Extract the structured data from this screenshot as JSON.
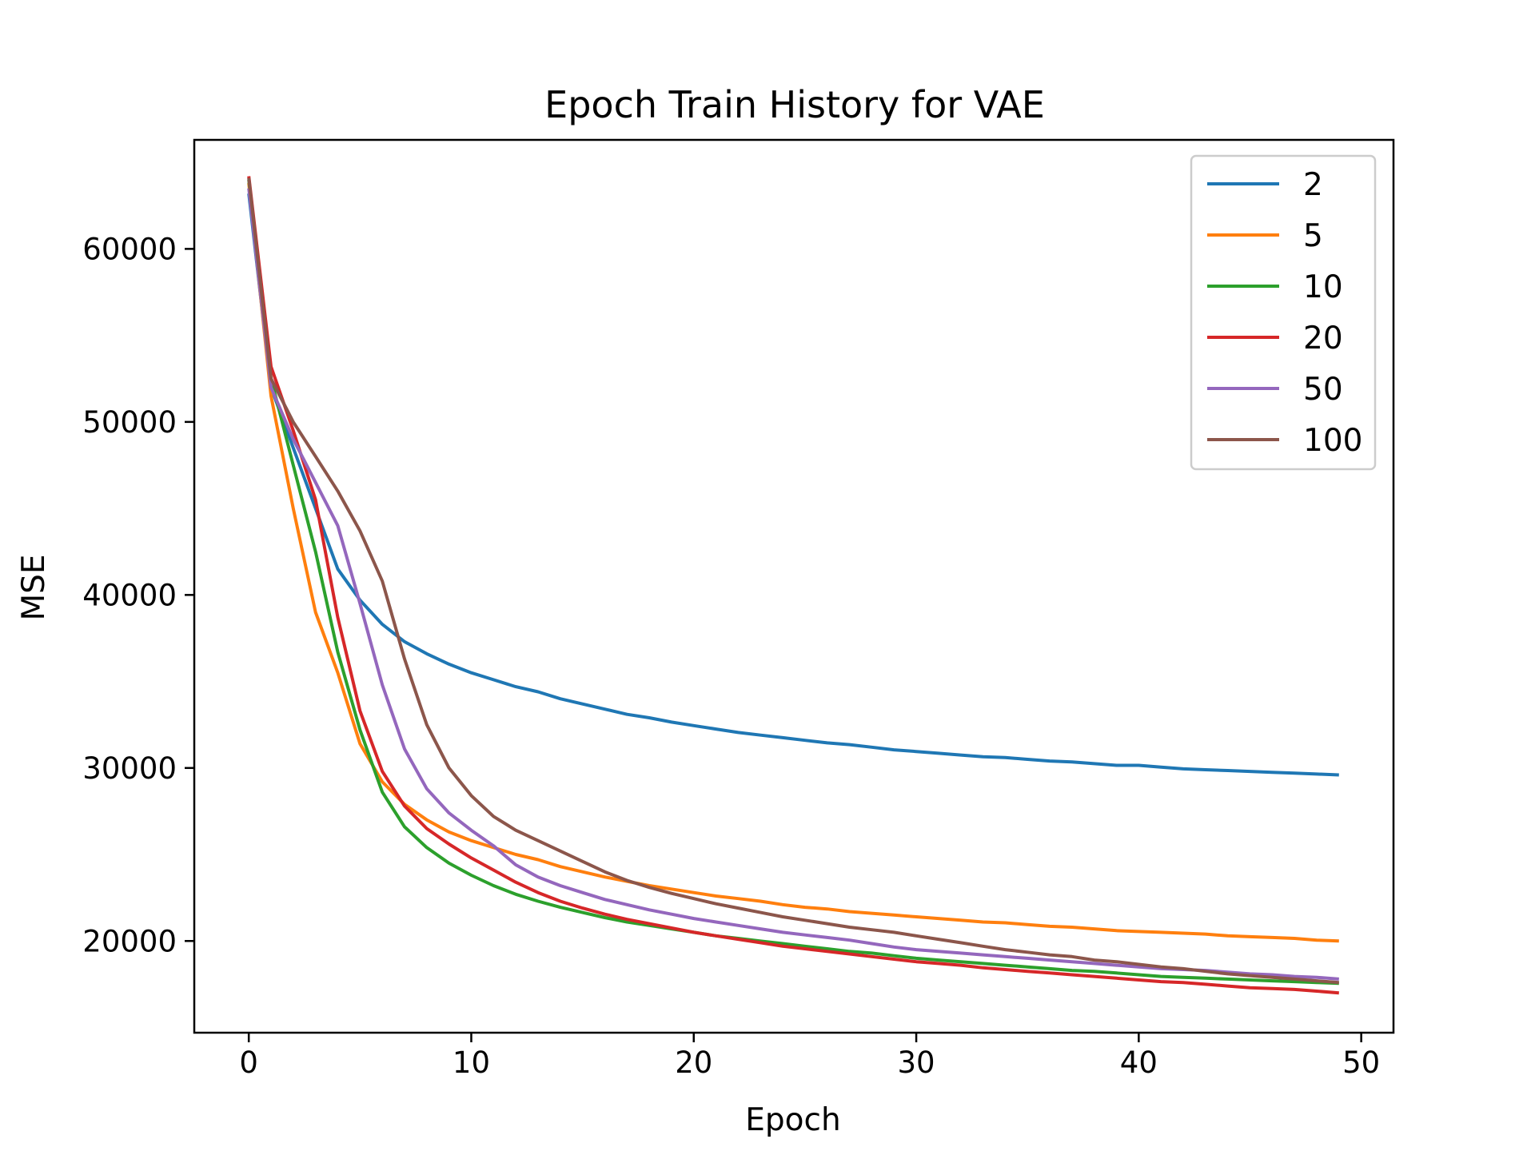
{
  "chart_data": {
    "type": "line",
    "title": "Epoch Train History for VAE",
    "xlabel": "Epoch",
    "ylabel": "MSE",
    "xlim": [
      -2.45,
      51.45
    ],
    "ylim": [
      14700,
      66300
    ],
    "xticks": [
      0,
      10,
      20,
      30,
      40,
      50
    ],
    "yticks": [
      20000,
      30000,
      40000,
      50000,
      60000
    ],
    "grid": false,
    "legend_position": "top-right",
    "x": [
      0,
      1,
      2,
      3,
      4,
      5,
      6,
      7,
      8,
      9,
      10,
      11,
      12,
      13,
      14,
      15,
      16,
      17,
      18,
      19,
      20,
      21,
      22,
      23,
      24,
      25,
      26,
      27,
      28,
      29,
      30,
      31,
      32,
      33,
      34,
      35,
      36,
      37,
      38,
      39,
      40,
      41,
      42,
      43,
      44,
      45,
      46,
      47,
      48,
      49
    ],
    "series": [
      {
        "name": "2",
        "color": "#1f77b4",
        "values": [
          63200,
          52000,
          48500,
          45000,
          41500,
          39700,
          38300,
          37300,
          36600,
          36000,
          35500,
          35100,
          34700,
          34400,
          34000,
          33700,
          33400,
          33100,
          32900,
          32650,
          32450,
          32250,
          32050,
          31900,
          31750,
          31600,
          31450,
          31350,
          31200,
          31050,
          30950,
          30850,
          30750,
          30650,
          30600,
          30500,
          30400,
          30350,
          30250,
          30150,
          30150,
          30050,
          29950,
          29900,
          29850,
          29800,
          29750,
          29700,
          29650,
          29600
        ]
      },
      {
        "name": "5",
        "color": "#ff7f0e",
        "values": [
          63800,
          51500,
          45000,
          39000,
          35500,
          31400,
          29200,
          27900,
          27000,
          26300,
          25800,
          25400,
          25000,
          24700,
          24300,
          24000,
          23700,
          23450,
          23200,
          23000,
          22800,
          22600,
          22450,
          22300,
          22100,
          21950,
          21850,
          21700,
          21600,
          21500,
          21400,
          21300,
          21200,
          21100,
          21050,
          20950,
          20850,
          20800,
          20700,
          20600,
          20550,
          20500,
          20450,
          20400,
          20300,
          20250,
          20200,
          20150,
          20050,
          20000
        ]
      },
      {
        "name": "10",
        "color": "#2ca02c",
        "values": [
          64000,
          52500,
          47500,
          42500,
          36700,
          32200,
          28600,
          26600,
          25400,
          24500,
          23800,
          23200,
          22700,
          22300,
          21950,
          21650,
          21350,
          21100,
          20900,
          20700,
          20500,
          20300,
          20150,
          20000,
          19850,
          19700,
          19550,
          19400,
          19300,
          19150,
          19000,
          18900,
          18800,
          18700,
          18600,
          18500,
          18400,
          18300,
          18250,
          18150,
          18050,
          17950,
          17900,
          17850,
          17800,
          17750,
          17700,
          17650,
          17600,
          17550
        ]
      },
      {
        "name": "20",
        "color": "#d62728",
        "values": [
          64200,
          53200,
          49500,
          45500,
          38700,
          33300,
          29800,
          27800,
          26500,
          25600,
          24800,
          24100,
          23400,
          22800,
          22300,
          21900,
          21550,
          21250,
          21000,
          20750,
          20500,
          20300,
          20100,
          19900,
          19700,
          19550,
          19400,
          19250,
          19100,
          18950,
          18800,
          18700,
          18600,
          18450,
          18350,
          18250,
          18150,
          18050,
          17950,
          17850,
          17750,
          17650,
          17600,
          17500,
          17400,
          17300,
          17250,
          17200,
          17100,
          17000
        ]
      },
      {
        "name": "50",
        "color": "#9467bd",
        "values": [
          63500,
          52000,
          49000,
          46500,
          44000,
          39500,
          34800,
          31100,
          28800,
          27400,
          26400,
          25500,
          24400,
          23700,
          23200,
          22800,
          22400,
          22100,
          21800,
          21550,
          21300,
          21100,
          20900,
          20700,
          20500,
          20350,
          20200,
          20050,
          19850,
          19650,
          19500,
          19400,
          19300,
          19200,
          19100,
          19000,
          18900,
          18800,
          18700,
          18600,
          18500,
          18400,
          18350,
          18300,
          18200,
          18100,
          18050,
          17950,
          17900,
          17800
        ]
      },
      {
        "name": "100",
        "color": "#8c564b",
        "values": [
          64100,
          52500,
          50000,
          48000,
          46000,
          43700,
          40800,
          36300,
          32500,
          30000,
          28400,
          27200,
          26400,
          25800,
          25200,
          24600,
          24000,
          23500,
          23100,
          22750,
          22450,
          22150,
          21900,
          21650,
          21400,
          21200,
          21000,
          20800,
          20650,
          20500,
          20300,
          20100,
          19900,
          19700,
          19500,
          19350,
          19200,
          19100,
          18900,
          18800,
          18650,
          18500,
          18400,
          18250,
          18100,
          18000,
          17900,
          17800,
          17700,
          17600
        ]
      }
    ]
  }
}
